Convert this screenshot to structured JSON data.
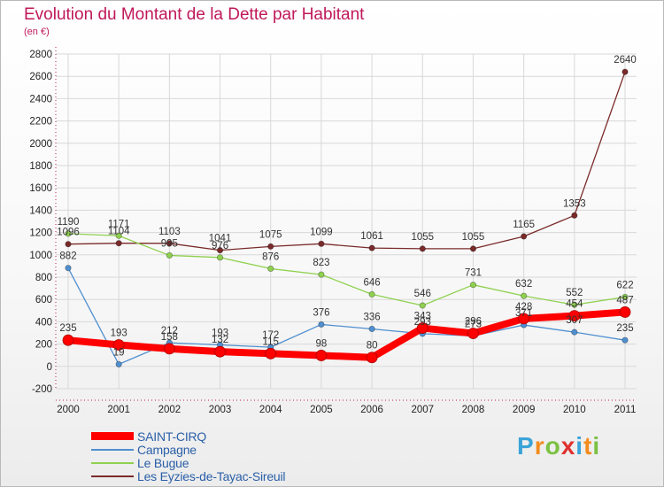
{
  "header": {
    "title": "Evolution du Montant de la Dette par Habitant",
    "unit": "(en €)"
  },
  "colors": {
    "title": "#c0185a",
    "legend_text": "#2a5fa8",
    "grid": "#d8d8d8",
    "axis": "#c0185a"
  },
  "logo": {
    "letters": [
      "P",
      "r",
      "o",
      "x",
      "i",
      "t",
      "i"
    ],
    "colors": [
      "#3aa3d8",
      "#f28c1e",
      "#7cc142",
      "#e03030",
      "#3aa3d8",
      "#f28c1e",
      "#7cc142"
    ]
  },
  "chart_data": {
    "type": "line",
    "title": "Evolution du Montant de la Dette par Habitant",
    "subtitle": "(en €)",
    "x": [
      "2000",
      "2001",
      "2002",
      "2003",
      "2004",
      "2005",
      "2006",
      "2007",
      "2008",
      "2009",
      "2010",
      "2011"
    ],
    "ylim": [
      -200,
      2800
    ],
    "yticks": [
      -200,
      0,
      200,
      400,
      600,
      800,
      1000,
      1200,
      1400,
      1600,
      1800,
      2000,
      2200,
      2400,
      2600,
      2800
    ],
    "grid": true,
    "legend_position": "bottom-left",
    "series": [
      {
        "name": "SAINT-CIRQ",
        "color": "#ff0000",
        "values": [
          235,
          193,
          158,
          132,
          115,
          98,
          80,
          343,
          296,
          428,
          454,
          487
        ],
        "labels": [
          "235",
          "193",
          "158",
          "132",
          "115",
          "98",
          "80",
          "343",
          "296",
          "428",
          "454",
          "487"
        ]
      },
      {
        "name": "Campagne",
        "color": "#4f8fd0",
        "values": [
          882,
          19,
          212,
          193,
          172,
          376,
          336,
          293,
          273,
          371,
          307,
          235
        ],
        "labels": [
          "882",
          "19",
          "212",
          "193",
          "172",
          "376",
          "336",
          "293",
          "273",
          "371",
          "307",
          "235"
        ]
      },
      {
        "name": "Le Bugue",
        "color": "#8fd14f",
        "values": [
          1190,
          1171,
          995,
          976,
          876,
          823,
          646,
          546,
          731,
          632,
          552,
          622
        ],
        "labels": [
          "1190",
          "1171",
          "995",
          "976",
          "876",
          "823",
          "646",
          "546",
          "731",
          "632",
          "552",
          "622"
        ]
      },
      {
        "name": "Les Eyzies-de-Tayac-Sireuil",
        "color": "#7a2a2a",
        "values": [
          1096,
          1104,
          1103,
          1041,
          1075,
          1099,
          1061,
          1055,
          1055,
          1165,
          1353,
          2640
        ],
        "labels": [
          "1096",
          "1104",
          "1103",
          "1041",
          "1075",
          "1099",
          "1061",
          "1055",
          "1055",
          "1165",
          "1353",
          "2640"
        ]
      }
    ]
  }
}
